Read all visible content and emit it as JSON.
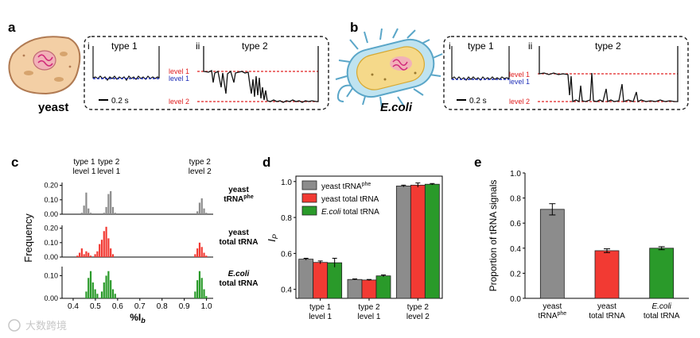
{
  "panels": {
    "a": {
      "letter": "a",
      "organism": "yeast",
      "sub_i": "i",
      "sub_ii": "ii",
      "type1": "type 1",
      "type2": "type 2",
      "level1": "level 1",
      "level2": "level 2",
      "scale": "0.2 s"
    },
    "b": {
      "letter": "b",
      "organism": "E.coli",
      "sub_i": "i",
      "sub_ii": "ii",
      "type1": "type 1",
      "type2": "type 2",
      "level1": "level 1",
      "level2": "level 2",
      "scale": "0.2 s"
    },
    "c": {
      "letter": "c"
    },
    "d": {
      "letter": "d"
    },
    "e": {
      "letter": "e"
    }
  },
  "watermark": "大数跨境",
  "colors": {
    "gray": "#8c8c8c",
    "red": "#f23a33",
    "green": "#2a9a2a",
    "trace_blue": "#1f2fb8",
    "dashed_red": "#e02020"
  },
  "chart_data": [
    {
      "id": "c",
      "type": "histogram",
      "xlabel": "%Ib",
      "ylabel": "Frequency",
      "xlim": [
        0.35,
        1.03
      ],
      "xticks": [
        "0.4",
        "0.5",
        "0.6",
        "0.7",
        "0.8",
        "0.9",
        "1.0"
      ],
      "annotations": [
        {
          "line1": "type 1",
          "line2": "level 1"
        },
        {
          "line1": "type 2",
          "line2": "level 1"
        },
        {
          "line1": "type 2",
          "line2": "level 2"
        }
      ],
      "series": [
        {
          "name_line1": "yeast",
          "name_line2": "tRNA",
          "name_sup": "phe",
          "color": "gray",
          "yticks": [
            "0.00",
            "0.10",
            "0.20"
          ],
          "ylim": [
            0,
            0.22
          ],
          "bins": [
            [
              0.44,
              0.01
            ],
            [
              0.45,
              0.06
            ],
            [
              0.46,
              0.15
            ],
            [
              0.47,
              0.04
            ],
            [
              0.48,
              0.01
            ],
            [
              0.54,
              0.01
            ],
            [
              0.55,
              0.05
            ],
            [
              0.56,
              0.14
            ],
            [
              0.57,
              0.16
            ],
            [
              0.58,
              0.05
            ],
            [
              0.59,
              0.01
            ],
            [
              0.96,
              0.02
            ],
            [
              0.97,
              0.08
            ],
            [
              0.98,
              0.11
            ],
            [
              0.99,
              0.04
            ],
            [
              1.0,
              0.01
            ]
          ]
        },
        {
          "name_line1": "yeast",
          "name_line2": "total tRNA",
          "name_sup": "",
          "color": "red",
          "yticks": [
            "0.00",
            "0.10",
            "0.20"
          ],
          "ylim": [
            0,
            0.22
          ],
          "bins": [
            [
              0.42,
              0.01
            ],
            [
              0.43,
              0.03
            ],
            [
              0.44,
              0.06
            ],
            [
              0.45,
              0.02
            ],
            [
              0.46,
              0.04
            ],
            [
              0.47,
              0.03
            ],
            [
              0.48,
              0.01
            ],
            [
              0.5,
              0.02
            ],
            [
              0.51,
              0.04
            ],
            [
              0.52,
              0.09
            ],
            [
              0.53,
              0.12
            ],
            [
              0.54,
              0.18
            ],
            [
              0.55,
              0.21
            ],
            [
              0.56,
              0.13
            ],
            [
              0.57,
              0.06
            ],
            [
              0.58,
              0.02
            ],
            [
              0.95,
              0.02
            ],
            [
              0.96,
              0.06
            ],
            [
              0.97,
              0.1
            ],
            [
              0.98,
              0.07
            ],
            [
              0.99,
              0.03
            ],
            [
              1.0,
              0.01
            ]
          ]
        },
        {
          "name_line1": "E.coli",
          "name_line2": "total tRNA",
          "name_sup": "",
          "color": "green",
          "yticks": [
            "0.00",
            "0.10"
          ],
          "ylim": [
            0,
            0.14
          ],
          "bins": [
            [
              0.46,
              0.03
            ],
            [
              0.47,
              0.09
            ],
            [
              0.48,
              0.12
            ],
            [
              0.49,
              0.07
            ],
            [
              0.5,
              0.04
            ],
            [
              0.51,
              0.02
            ],
            [
              0.53,
              0.03
            ],
            [
              0.54,
              0.07
            ],
            [
              0.55,
              0.1
            ],
            [
              0.56,
              0.12
            ],
            [
              0.57,
              0.08
            ],
            [
              0.58,
              0.04
            ],
            [
              0.59,
              0.02
            ],
            [
              0.95,
              0.03
            ],
            [
              0.96,
              0.08
            ],
            [
              0.97,
              0.12
            ],
            [
              0.98,
              0.09
            ],
            [
              0.99,
              0.04
            ],
            [
              1.0,
              0.01
            ]
          ]
        }
      ]
    },
    {
      "id": "d",
      "type": "bar",
      "ylabel": "I",
      "ylabel_sub": "P",
      "ylim": [
        0.35,
        1.03
      ],
      "yticks": [
        "0.4",
        "0.6",
        "0.8",
        "1.0"
      ],
      "categories": [
        {
          "line1": "type 1",
          "line2": "level 1"
        },
        {
          "line1": "type 2",
          "line2": "level 1"
        },
        {
          "line1": "type 2",
          "line2": "level 2"
        }
      ],
      "series": [
        {
          "name": "yeast tRNA",
          "sup": "phe",
          "color": "gray",
          "values": [
            0.568,
            0.455,
            0.975
          ],
          "errors": [
            0.005,
            0.003,
            0.005
          ]
        },
        {
          "name": "yeast total tRNA",
          "sup": "",
          "color": "red",
          "values": [
            0.55,
            0.452,
            0.98
          ],
          "errors": [
            0.008,
            0.003,
            0.012
          ]
        },
        {
          "name": "E.coli total tRNA",
          "sup": "",
          "color": "green",
          "values": [
            0.548,
            0.475,
            0.985
          ],
          "errors": [
            0.025,
            0.005,
            0.004
          ]
        }
      ]
    },
    {
      "id": "e",
      "type": "bar",
      "ylabel": "Proportion of tRNA signals",
      "ylim": [
        0,
        1.0
      ],
      "yticks": [
        "0.0",
        "0.2",
        "0.4",
        "0.6",
        "0.8",
        "1.0"
      ],
      "categories": [
        {
          "line1": "yeast",
          "line2": "tRNA",
          "sup": "phe",
          "color": "gray"
        },
        {
          "line1": "yeast",
          "line2": "total tRNA",
          "sup": "",
          "color": "red"
        },
        {
          "line1": "E.coli",
          "line2": "total tRNA",
          "sup": "",
          "color": "green"
        }
      ],
      "values": [
        0.71,
        0.38,
        0.4
      ],
      "errors": [
        0.045,
        0.015,
        0.012
      ]
    }
  ]
}
